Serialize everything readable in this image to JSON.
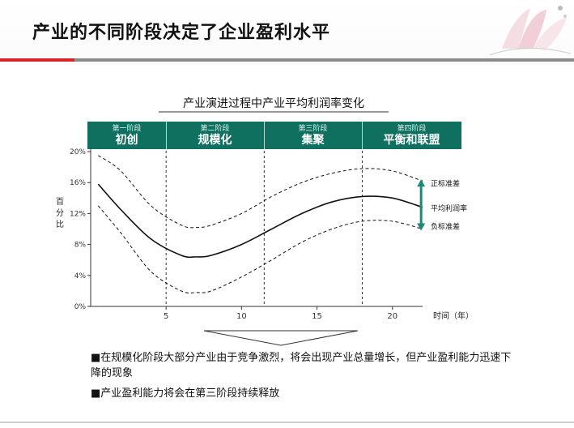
{
  "slide": {
    "title": "产业的不同阶段决定了企业盈利水平"
  },
  "chart_data": {
    "type": "line",
    "title": "产业演进过程中产业平均利润率变化",
    "xlabel": "时间（年）",
    "ylabel": "百分比",
    "xlim": [
      0,
      22
    ],
    "ylim": [
      0,
      20
    ],
    "x_ticks": [
      5,
      10,
      15,
      20
    ],
    "y_ticks": [
      "0%",
      "4%",
      "8%",
      "12%",
      "16%",
      "20%"
    ],
    "y_tick_values": [
      0,
      4,
      8,
      12,
      16,
      20
    ],
    "stage_boundaries": [
      5,
      11.5,
      18
    ],
    "stages": [
      {
        "small": "第一阶段",
        "big": "初创"
      },
      {
        "small": "第二阶段",
        "big": "规模化"
      },
      {
        "small": "第三阶段",
        "big": "集聚"
      },
      {
        "small": "第四阶段",
        "big": "平衡和联盟"
      }
    ],
    "x": [
      0.5,
      2,
      4,
      6,
      7,
      8,
      10,
      12,
      14,
      16,
      18,
      20,
      22
    ],
    "series": [
      {
        "name": "正标准差",
        "style": "dashed",
        "values": [
          19.5,
          17.5,
          13.0,
          10.5,
          10.2,
          10.5,
          12.0,
          14.2,
          16.0,
          17.2,
          17.8,
          17.5,
          16.2
        ]
      },
      {
        "name": "平均利润率",
        "style": "solid",
        "values": [
          15.8,
          12.5,
          8.7,
          6.6,
          6.4,
          6.6,
          8.0,
          10.0,
          12.0,
          13.5,
          14.2,
          14.0,
          12.8
        ]
      },
      {
        "name": "负标准差",
        "style": "dashed",
        "values": [
          13.0,
          9.5,
          4.5,
          2.0,
          1.8,
          2.0,
          3.8,
          6.0,
          8.3,
          10.0,
          11.0,
          11.0,
          10.0
        ]
      }
    ],
    "arrow_color": "#1a8a78",
    "series_color": "#111111",
    "stage_color": "#0f7060"
  },
  "bullets": [
    "■在规模化阶段大部分产业由于竞争激烈，将会出现产业总量增长，但产业盈利能力迅速下降的现象",
    "■产业盈利能力将会在第三阶段持续释放"
  ],
  "colors": {
    "accent_red": "#d9222a",
    "rule_grey": "#8a8a8a"
  }
}
